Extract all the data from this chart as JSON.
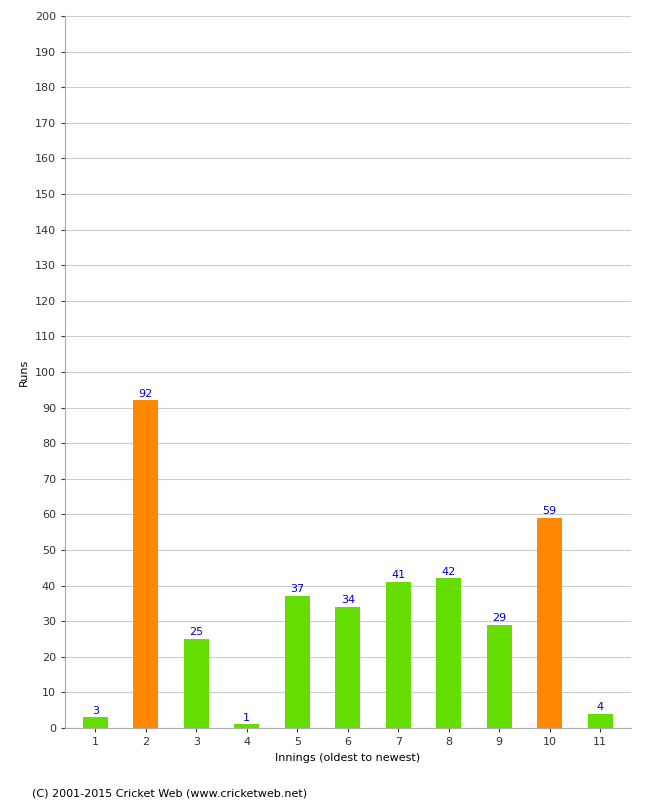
{
  "xlabel": "Innings (oldest to newest)",
  "ylabel": "Runs",
  "categories": [
    "1",
    "2",
    "3",
    "4",
    "5",
    "6",
    "7",
    "8",
    "9",
    "10",
    "11"
  ],
  "values": [
    3,
    92,
    25,
    1,
    37,
    34,
    41,
    42,
    29,
    59,
    4
  ],
  "bar_colors": [
    "#66dd00",
    "#ff8800",
    "#66dd00",
    "#66dd00",
    "#66dd00",
    "#66dd00",
    "#66dd00",
    "#66dd00",
    "#66dd00",
    "#ff8800",
    "#66dd00"
  ],
  "ylim": [
    0,
    200
  ],
  "ytick_step": 10,
  "label_color": "#0000cc",
  "label_fontsize": 8,
  "axis_fontsize": 8,
  "ylabel_fontsize": 8,
  "xlabel_fontsize": 8,
  "grid_color": "#cccccc",
  "background_color": "#ffffff",
  "footer": "(C) 2001-2015 Cricket Web (www.cricketweb.net)"
}
